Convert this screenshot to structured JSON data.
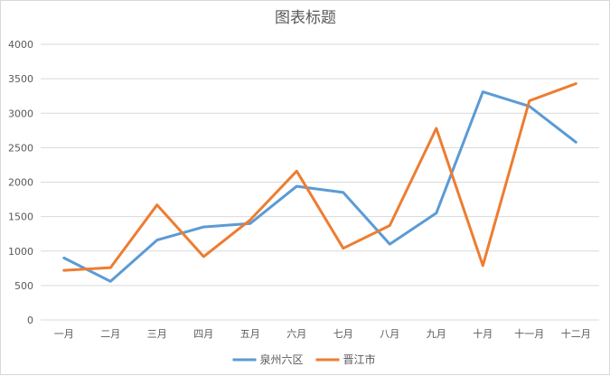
{
  "chart_data": {
    "type": "line",
    "title": "图表标题",
    "xlabel": "",
    "ylabel": "",
    "categories": [
      "一月",
      "二月",
      "三月",
      "四月",
      "五月",
      "六月",
      "七月",
      "八月",
      "九月",
      "十月",
      "十一月",
      "十二月"
    ],
    "ylim": [
      0,
      4000
    ],
    "yticks": [
      "0",
      "500",
      "1000",
      "1500",
      "2000",
      "2500",
      "3000",
      "3500",
      "4000"
    ],
    "grid": true,
    "legend_position": "bottom",
    "series": [
      {
        "name": "泉州六区",
        "color": "#5B9BD5",
        "values": [
          900,
          560,
          1160,
          1350,
          1400,
          1940,
          1850,
          1100,
          1550,
          3310,
          3100,
          2580
        ]
      },
      {
        "name": "晋江市",
        "color": "#ED7D31",
        "values": [
          720,
          760,
          1670,
          920,
          1450,
          2160,
          1040,
          1370,
          2780,
          790,
          3180,
          3430
        ]
      }
    ]
  }
}
